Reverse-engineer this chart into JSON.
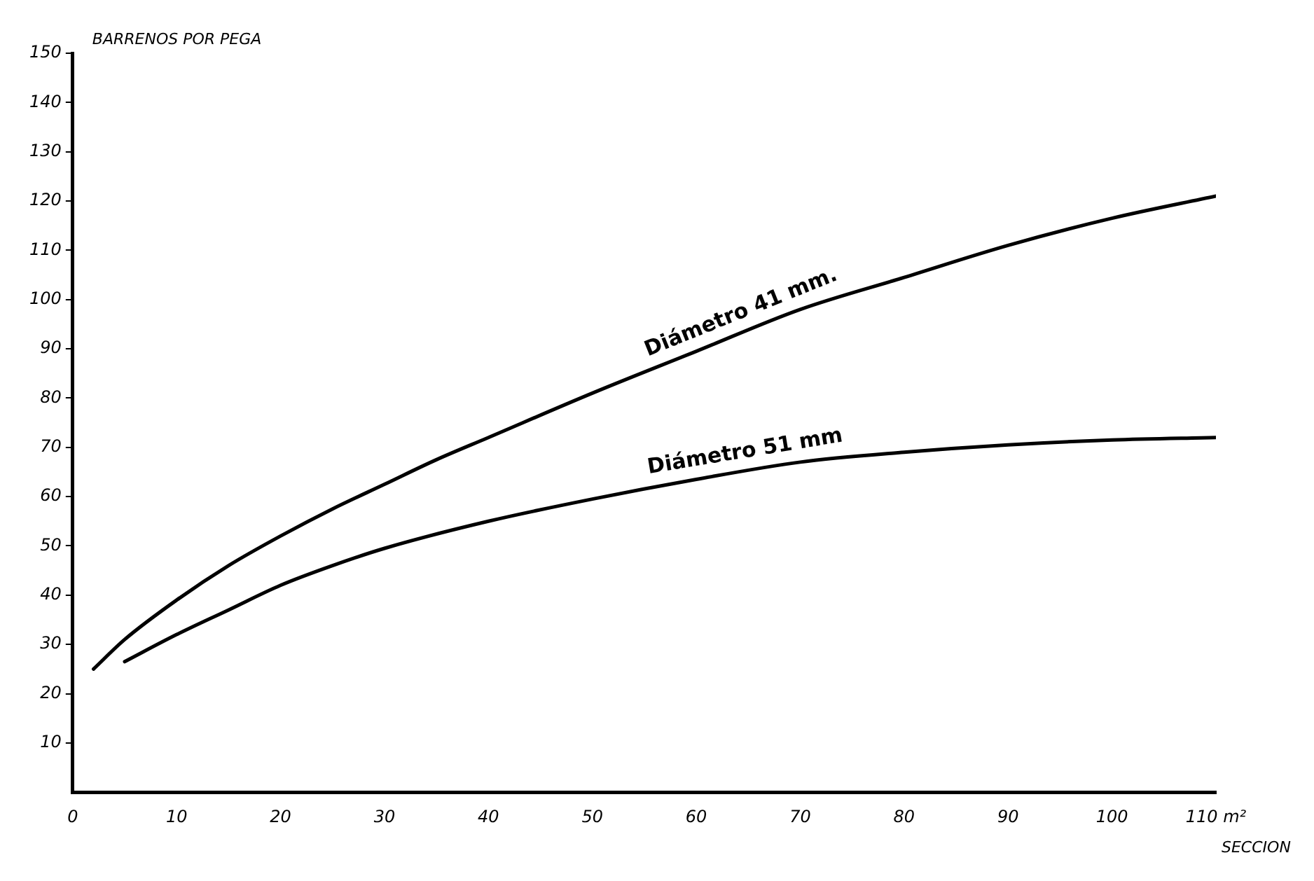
{
  "chart_data": {
    "type": "line",
    "ylabel": "BARRENOS POR PEGA",
    "xlabel": "SECCION",
    "xlim": [
      0,
      110
    ],
    "xticks": [
      0,
      10,
      20,
      30,
      40,
      50,
      60,
      70,
      80,
      90,
      100,
      {
        "value": 110,
        "label": "110 m²"
      }
    ],
    "ylim": [
      0,
      150
    ],
    "yticks": [
      10,
      20,
      30,
      40,
      50,
      60,
      70,
      80,
      90,
      100,
      110,
      120,
      130,
      140,
      150
    ],
    "grid": false,
    "legend": false,
    "marker": "none",
    "line_style": "solid",
    "series": [
      {
        "name": "Diámetro 41 mm.",
        "color": "#000000",
        "x": [
          2,
          5,
          10,
          15,
          20,
          25,
          30,
          35,
          40,
          50,
          60,
          70,
          80,
          90,
          100,
          110
        ],
        "values": [
          25,
          31,
          39,
          46,
          52,
          57.5,
          62.5,
          67.5,
          72,
          81,
          89.5,
          98,
          104.5,
          111,
          116.5,
          121
        ]
      },
      {
        "name": "Diámetro 51 mm",
        "color": "#000000",
        "x": [
          5,
          10,
          15,
          20,
          25,
          30,
          40,
          50,
          60,
          70,
          80,
          90,
          100,
          110
        ],
        "values": [
          26.5,
          32,
          37,
          42,
          46,
          49.5,
          55,
          59.5,
          63.5,
          67,
          69,
          70.5,
          71.5,
          72
        ]
      }
    ]
  }
}
